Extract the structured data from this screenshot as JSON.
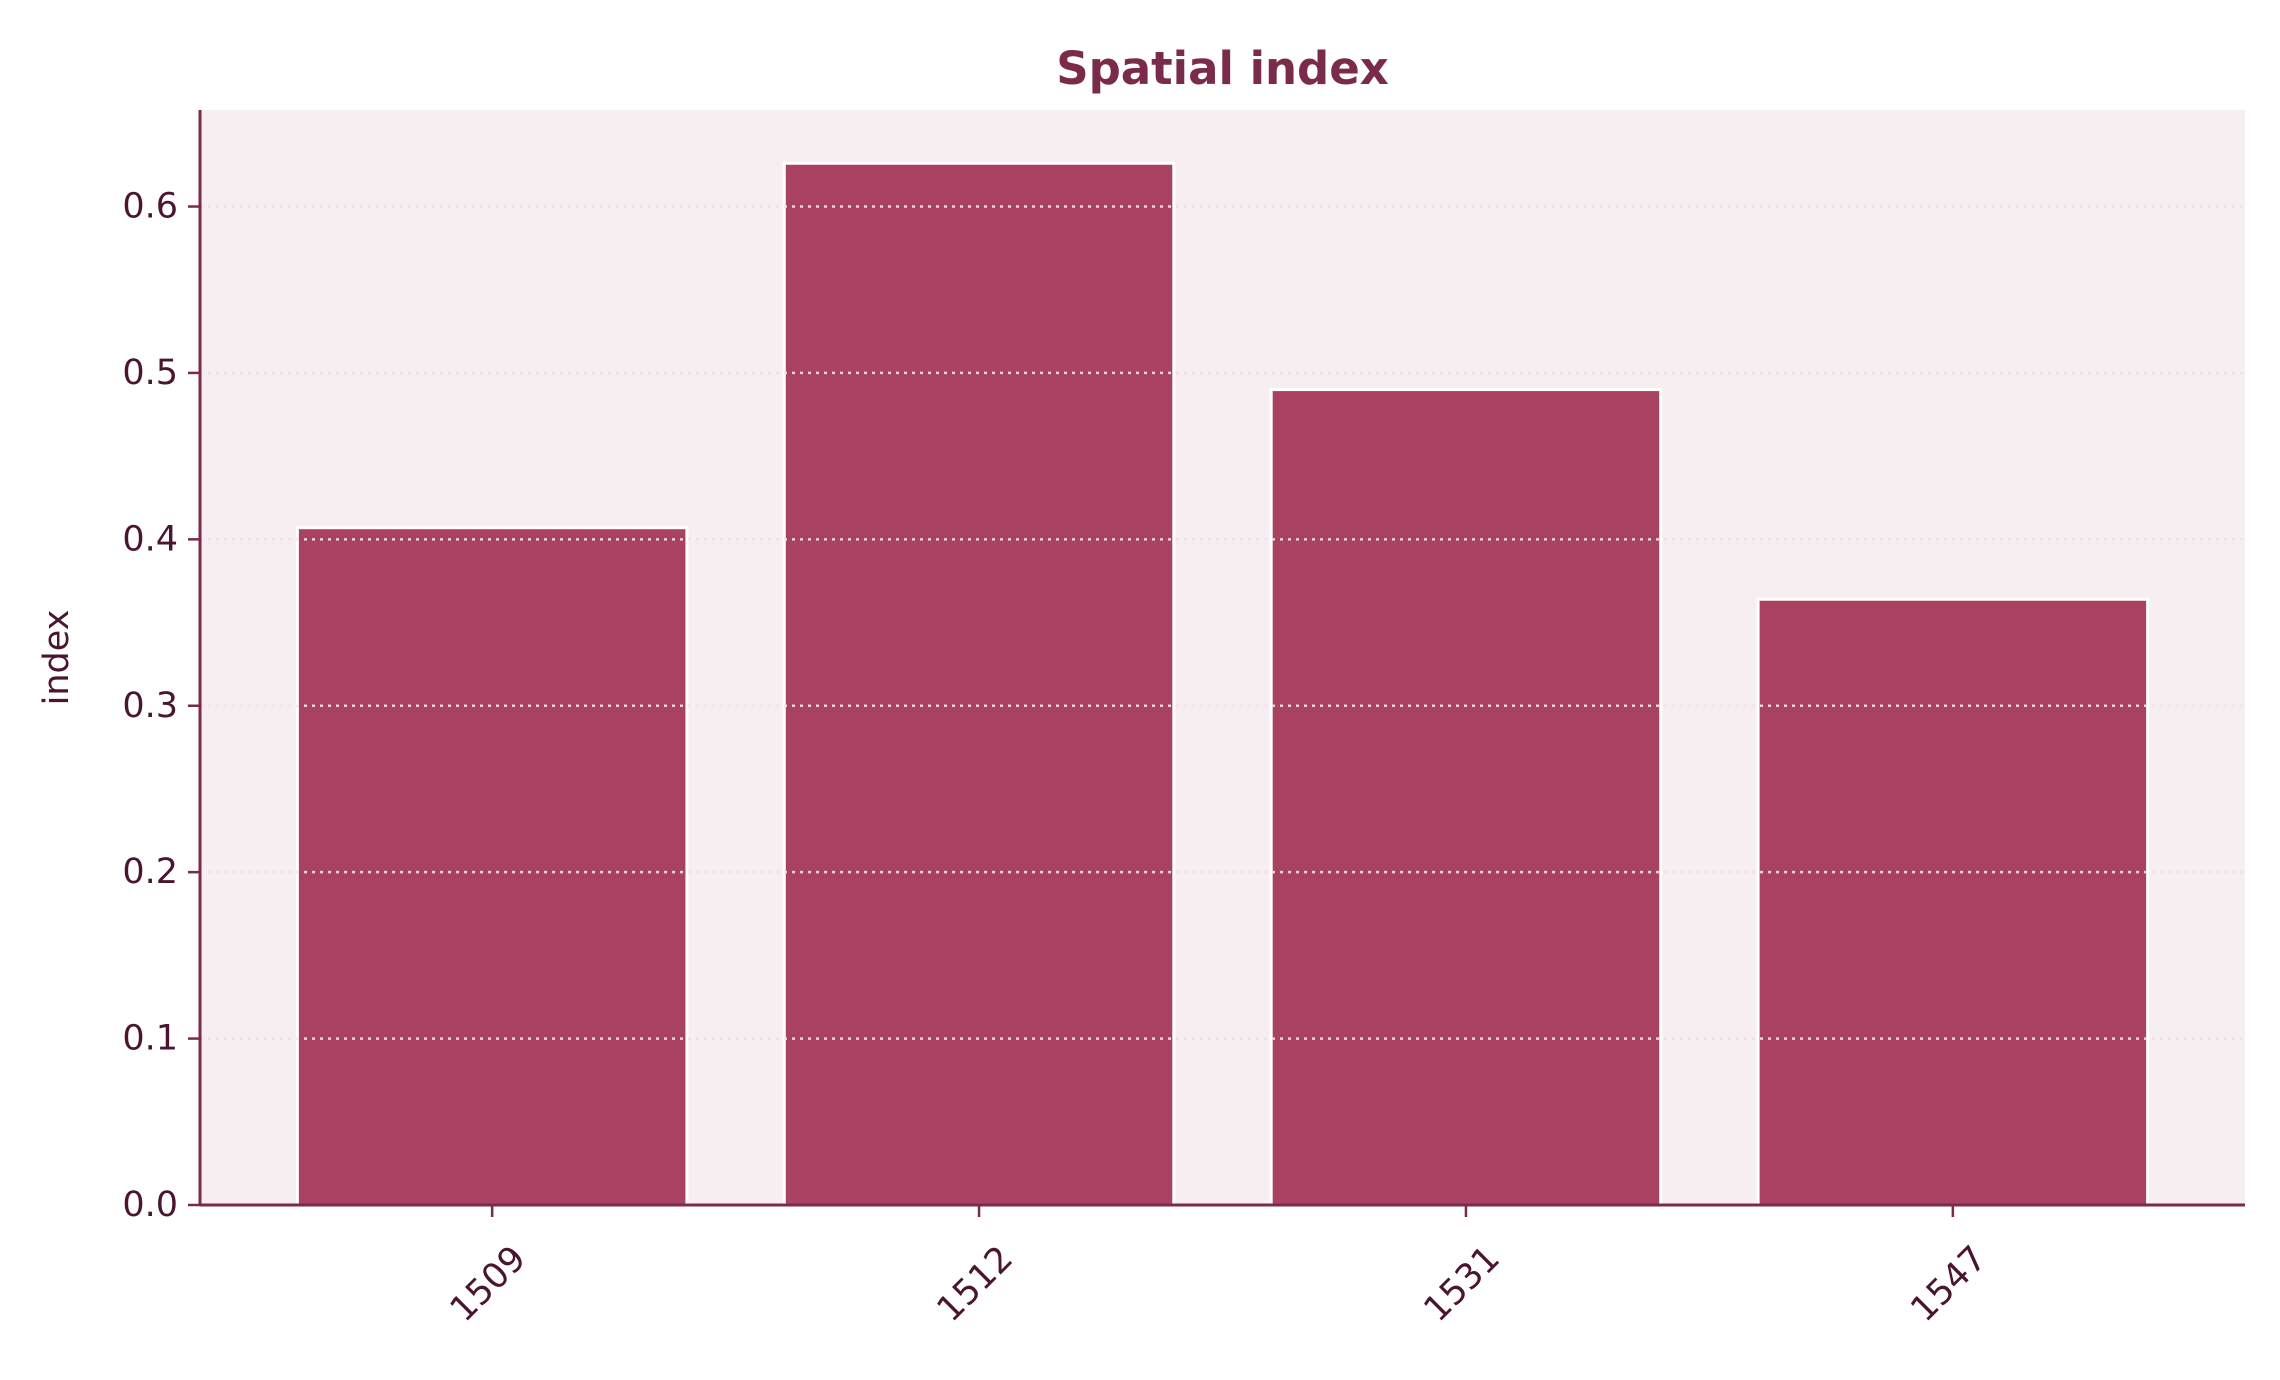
{
  "colors": {
    "title": "#7a2a4a",
    "text": "#4a1530",
    "axis": "#7a2a4a",
    "plot_background": "#f7eef2",
    "bar_fill": "#a94260",
    "bar_edge": "#ffffff",
    "grid": "#e6d6dc"
  },
  "chart_data": {
    "type": "bar",
    "title": "Spatial index",
    "xlabel": "",
    "ylabel": "index",
    "categories": [
      "1509",
      "1512",
      "1531",
      "1547"
    ],
    "values": [
      0.407,
      0.626,
      0.49,
      0.364
    ],
    "ylim": [
      0,
      0.658
    ],
    "yticks": [
      "0.0",
      "0.1",
      "0.2",
      "0.3",
      "0.4",
      "0.5",
      "0.6"
    ],
    "grid": true,
    "legend": "none"
  }
}
